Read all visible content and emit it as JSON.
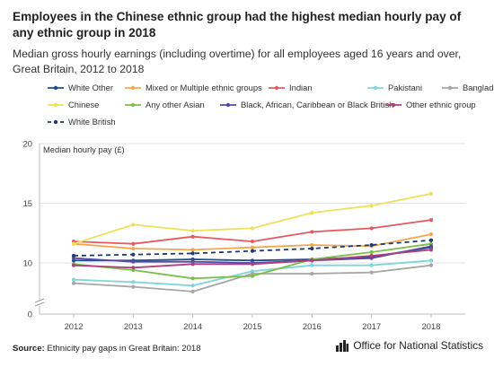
{
  "title": "Employees in the Chinese ethnic group had the highest median hourly pay of any ethnic group in 2018",
  "subtitle": "Median gross hourly earnings (including overtime) for all employees aged 16 years and over, Great Britain, 2012 to 2018",
  "footer": {
    "source_label": "Source:",
    "source_text": "Ethnicity pay gaps in Great Britain: 2018",
    "org_name": "Office for National Statistics",
    "org_logo_icon": "ons-logo-icon"
  },
  "chart_data": {
    "type": "line",
    "title": "Employees in the Chinese ethnic group had the highest median hourly pay of any ethnic group in 2018",
    "ylabel": "Median hourly pay (£)",
    "xlabel": "",
    "x": [
      "2012",
      "2013",
      "2014",
      "2015",
      "2016",
      "2017",
      "2018"
    ],
    "ylim": [
      0,
      20
    ],
    "y_axis_break": true,
    "yticks": [
      0,
      10,
      15,
      20
    ],
    "grid": true,
    "legend_position": "top",
    "series": [
      {
        "name": "White Other",
        "color": "#1f4e8c",
        "dash": false,
        "values": [
          10.2,
          10.2,
          10.3,
          10.2,
          10.3,
          10.5,
          11.3
        ]
      },
      {
        "name": "Mixed or Multiple ethnic groups",
        "color": "#f5a64c",
        "dash": false,
        "values": [
          11.6,
          11.2,
          11.1,
          11.3,
          11.5,
          11.4,
          12.4
        ]
      },
      {
        "name": "Indian",
        "color": "#e8595f",
        "dash": false,
        "values": [
          11.8,
          11.6,
          12.2,
          11.8,
          12.6,
          12.9,
          13.6
        ]
      },
      {
        "name": "Pakistani",
        "color": "#7fd6d9",
        "dash": false,
        "values": [
          8.6,
          8.4,
          8.1,
          9.3,
          9.8,
          9.8,
          10.2
        ]
      },
      {
        "name": "Bangladeshi",
        "color": "#a6a6a6",
        "dash": false,
        "values": [
          8.3,
          8.0,
          7.6,
          9.1,
          9.1,
          9.2,
          9.8
        ]
      },
      {
        "name": "Chinese",
        "color": "#ece15a",
        "dash": false,
        "values": [
          11.6,
          13.2,
          12.7,
          12.9,
          14.2,
          14.8,
          15.8
        ]
      },
      {
        "name": "Any other Asian",
        "color": "#7ac04a",
        "dash": false,
        "values": [
          9.9,
          9.4,
          8.7,
          8.9,
          10.3,
          10.9,
          11.6
        ]
      },
      {
        "name": "Black, African, Caribbean or Black British",
        "color": "#5a4aa8",
        "dash": false,
        "values": [
          10.4,
          10.1,
          10.1,
          10.0,
          10.2,
          10.4,
          11.4
        ]
      },
      {
        "name": "Other ethnic group",
        "color": "#b0407a",
        "dash": false,
        "values": [
          9.8,
          9.6,
          9.9,
          9.9,
          10.2,
          10.6,
          11.1
        ]
      },
      {
        "name": "White British",
        "color": "#1f3a6e",
        "dash": true,
        "values": [
          10.6,
          10.7,
          10.8,
          11.0,
          11.2,
          11.5,
          11.9
        ]
      }
    ]
  }
}
